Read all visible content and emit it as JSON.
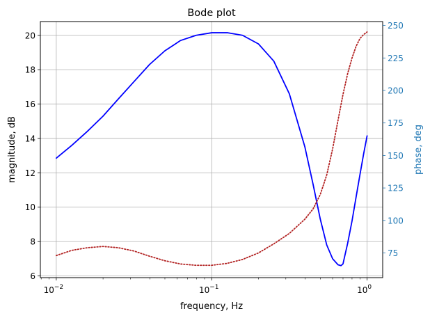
{
  "chart_data": {
    "type": "line",
    "title": "Bode plot",
    "xlabel": "frequency, Hz",
    "ylabel_left": "magnitude, dB",
    "ylabel_right": "phase, deg",
    "xscale": "log",
    "xlim": [
      0.0079,
      1.26
    ],
    "ylim_left": [
      5.9,
      20.8
    ],
    "ylim_right": [
      56,
      253
    ],
    "grid": true,
    "x_ticks": [
      {
        "value": 0.01,
        "base": "10",
        "exp": "−2"
      },
      {
        "value": 0.1,
        "base": "10",
        "exp": "−1"
      },
      {
        "value": 1,
        "base": "10",
        "exp": "0"
      }
    ],
    "y_ticks_left": [
      "6",
      "8",
      "10",
      "12",
      "14",
      "16",
      "18",
      "20"
    ],
    "y_ticks_right": [
      "75",
      "100",
      "125",
      "150",
      "175",
      "200",
      "225",
      "250"
    ],
    "series": [
      {
        "axis": "left",
        "color": "#0000ff",
        "style": "solid",
        "x": [
          0.01,
          0.0126,
          0.0158,
          0.02,
          0.0251,
          0.0316,
          0.0398,
          0.05,
          0.0631,
          0.0794,
          0.1,
          0.126,
          0.158,
          0.2,
          0.251,
          0.316,
          0.398,
          0.45,
          0.5,
          0.55,
          0.6,
          0.65,
          0.68,
          0.7,
          0.72,
          0.75,
          0.8,
          0.85,
          0.9,
          0.95,
          1.0
        ],
        "y": [
          12.85,
          13.6,
          14.4,
          15.3,
          16.3,
          17.3,
          18.3,
          19.1,
          19.7,
          20.0,
          20.15,
          20.15,
          20.0,
          19.5,
          18.5,
          16.6,
          13.5,
          11.3,
          9.3,
          7.8,
          7.0,
          6.65,
          6.6,
          6.7,
          7.2,
          7.9,
          9.2,
          10.6,
          11.9,
          13.1,
          14.15
        ]
      },
      {
        "axis": "right",
        "color": "#b22222",
        "style": "dotted",
        "x": [
          0.01,
          0.0126,
          0.0158,
          0.02,
          0.0251,
          0.0316,
          0.0398,
          0.05,
          0.0631,
          0.0794,
          0.1,
          0.126,
          0.158,
          0.2,
          0.251,
          0.316,
          0.398,
          0.45,
          0.5,
          0.55,
          0.6,
          0.65,
          0.7,
          0.75,
          0.8,
          0.85,
          0.9,
          0.95,
          1.0
        ],
        "y": [
          73,
          77,
          79,
          80,
          79,
          76.5,
          72.5,
          69,
          66.5,
          65.5,
          65.5,
          67,
          70,
          75,
          82,
          90,
          101,
          109,
          120,
          135,
          155,
          177,
          197,
          213,
          225,
          234,
          240,
          243,
          245
        ]
      }
    ]
  },
  "colors": {
    "axis_right": "#1f77b4",
    "grid": "#b0b0b0",
    "axis": "#000000"
  }
}
